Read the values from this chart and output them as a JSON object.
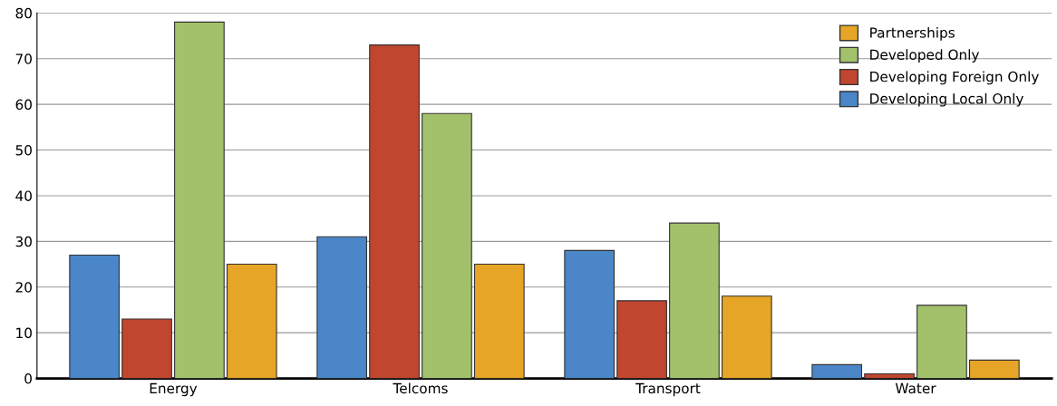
{
  "chart_data": {
    "type": "bar",
    "categories": [
      "Energy",
      "Telcoms",
      "Transport",
      "Water"
    ],
    "series": [
      {
        "name": "Developing Local Only",
        "color": "#4a86c8",
        "values": [
          27,
          31,
          28,
          3
        ]
      },
      {
        "name": "Developing Foreign Only",
        "color": "#c0462f",
        "values": [
          13,
          73,
          17,
          1
        ]
      },
      {
        "name": "Developed Only",
        "color": "#a3c16b",
        "values": [
          78,
          58,
          34,
          16
        ]
      },
      {
        "name": "Partnerships",
        "color": "#e6a526",
        "values": [
          25,
          25,
          18,
          4
        ]
      }
    ],
    "ylim": [
      0,
      80
    ],
    "yticks": [
      0,
      10,
      20,
      30,
      40,
      50,
      60,
      70,
      80
    ],
    "grid": "y",
    "legend": "top right"
  }
}
